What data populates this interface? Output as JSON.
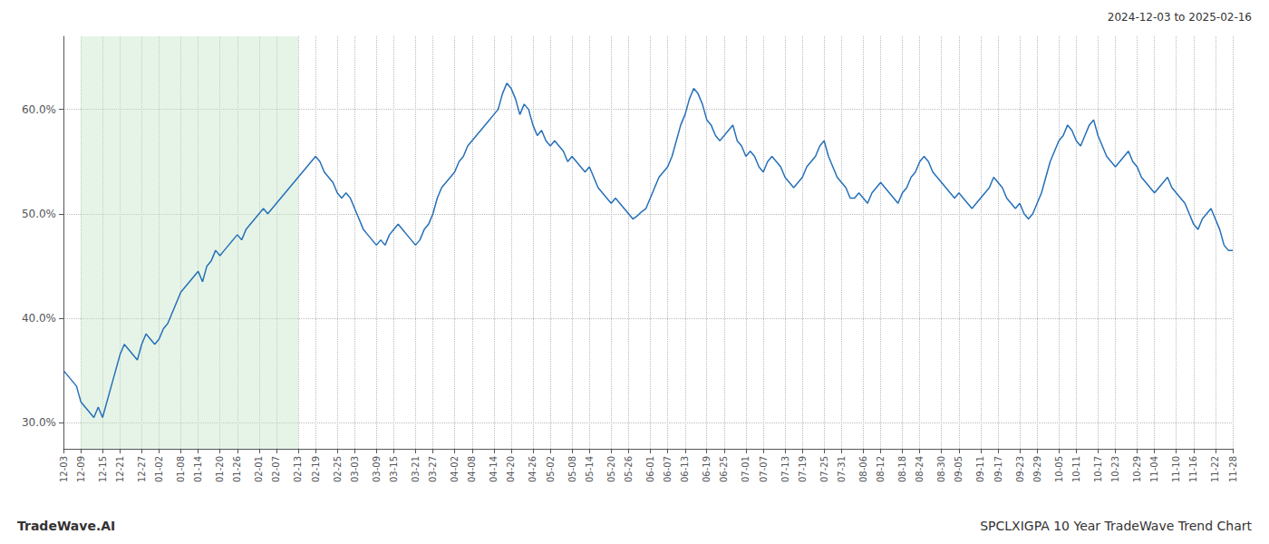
{
  "chart_data": {
    "type": "line",
    "title": "SPCLXIGPA 10 Year TradeWave Trend Chart",
    "subtitle": "2024-12-03 to 2025-02-16",
    "annotations": [
      "TradeWave.AI"
    ],
    "color": "#2570b8",
    "grid": true,
    "line_style": "solid",
    "shade": {
      "from": "12-09",
      "to": "02-13",
      "color": "#c8e6c9"
    },
    "ylim": [
      27.5,
      67.0
    ],
    "yticks": [
      {
        "value": 30.0,
        "label": "30.0%"
      },
      {
        "value": 40.0,
        "label": "40.0%"
      },
      {
        "value": 50.0,
        "label": "50.0%"
      },
      {
        "value": 60.0,
        "label": "60.0%"
      }
    ],
    "categories": [
      "12-03",
      null,
      null,
      null,
      "12-09",
      null,
      null,
      null,
      null,
      "12-15",
      null,
      null,
      null,
      "12-21",
      null,
      null,
      null,
      null,
      "12-27",
      null,
      null,
      null,
      "01-02",
      null,
      null,
      null,
      null,
      "01-08",
      null,
      null,
      null,
      "01-14",
      null,
      null,
      null,
      null,
      "01-20",
      null,
      null,
      null,
      "01-26",
      null,
      null,
      null,
      null,
      "02-01",
      null,
      null,
      null,
      "02-07",
      null,
      null,
      null,
      null,
      "02-13",
      null,
      null,
      null,
      "02-19",
      null,
      null,
      null,
      null,
      "02-25",
      null,
      null,
      null,
      "03-03",
      null,
      null,
      null,
      null,
      "03-09",
      null,
      null,
      null,
      "03-15",
      null,
      null,
      null,
      null,
      "03-21",
      null,
      null,
      null,
      "03-27",
      null,
      null,
      null,
      null,
      "04-02",
      null,
      null,
      null,
      "04-08",
      null,
      null,
      null,
      null,
      "04-14",
      null,
      null,
      null,
      "04-20",
      null,
      null,
      null,
      null,
      "04-26",
      null,
      null,
      null,
      "05-02",
      null,
      null,
      null,
      null,
      "05-08",
      null,
      null,
      null,
      "05-14",
      null,
      null,
      null,
      null,
      "05-20",
      null,
      null,
      null,
      "05-26",
      null,
      null,
      null,
      null,
      "06-01",
      null,
      null,
      null,
      "06-07",
      null,
      null,
      null,
      "06-13",
      null,
      null,
      null,
      null,
      "06-19",
      null,
      null,
      null,
      "06-25",
      null,
      null,
      null,
      null,
      "07-01",
      null,
      null,
      null,
      "07-07",
      null,
      null,
      null,
      null,
      "07-13",
      null,
      null,
      null,
      "07-19",
      null,
      null,
      null,
      null,
      "07-25",
      null,
      null,
      null,
      "07-31",
      null,
      null,
      null,
      null,
      "08-06",
      null,
      null,
      null,
      "08-12",
      null,
      null,
      null,
      null,
      "08-18",
      null,
      null,
      null,
      "08-24",
      null,
      null,
      null,
      null,
      "08-30",
      null,
      null,
      null,
      "09-05",
      null,
      null,
      null,
      null,
      "09-11",
      null,
      null,
      null,
      "09-17",
      null,
      null,
      null,
      null,
      "09-23",
      null,
      null,
      null,
      "09-29",
      null,
      null,
      null,
      null,
      "10-05",
      null,
      null,
      null,
      "10-11",
      null,
      null,
      null,
      null,
      "10-17",
      null,
      null,
      null,
      "10-23",
      null,
      null,
      null,
      null,
      "10-29",
      null,
      null,
      null,
      "11-04",
      null,
      null,
      null,
      null,
      "11-10",
      null,
      null,
      null,
      "11-16",
      null,
      null,
      null,
      null,
      "11-22",
      null,
      null,
      null,
      "11-28"
    ],
    "values": [
      35.0,
      34.5,
      34.0,
      33.5,
      32.0,
      31.5,
      31.0,
      30.5,
      31.5,
      30.5,
      32.0,
      33.5,
      35.0,
      36.5,
      37.5,
      37.0,
      36.5,
      36.0,
      37.5,
      38.5,
      38.0,
      37.5,
      38.0,
      39.0,
      39.5,
      40.5,
      41.5,
      42.5,
      43.0,
      43.5,
      44.0,
      44.5,
      43.5,
      45.0,
      45.5,
      46.5,
      46.0,
      46.5,
      47.0,
      47.5,
      48.0,
      47.5,
      48.5,
      49.0,
      49.5,
      50.0,
      50.5,
      50.0,
      50.5,
      51.0,
      51.5,
      52.0,
      52.5,
      53.0,
      53.5,
      54.0,
      54.5,
      55.0,
      55.5,
      55.0,
      54.0,
      53.5,
      53.0,
      52.0,
      51.5,
      52.0,
      51.5,
      50.5,
      49.5,
      48.5,
      48.0,
      47.5,
      47.0,
      47.5,
      47.0,
      48.0,
      48.5,
      49.0,
      48.5,
      48.0,
      47.5,
      47.0,
      47.5,
      48.5,
      49.0,
      50.0,
      51.5,
      52.5,
      53.0,
      53.5,
      54.0,
      55.0,
      55.5,
      56.5,
      57.0,
      57.5,
      58.0,
      58.5,
      59.0,
      59.5,
      60.0,
      61.5,
      62.5,
      62.0,
      61.0,
      59.5,
      60.5,
      60.0,
      58.5,
      57.5,
      58.0,
      57.0,
      56.5,
      57.0,
      56.5,
      56.0,
      55.0,
      55.5,
      55.0,
      54.5,
      54.0,
      54.5,
      53.5,
      52.5,
      52.0,
      51.5,
      51.0,
      51.5,
      51.0,
      50.5,
      50.0,
      49.5,
      49.8,
      50.2,
      50.5,
      51.5,
      52.5,
      53.5,
      54.0,
      54.5,
      55.5,
      57.0,
      58.5,
      59.5,
      61.0,
      62.0,
      61.5,
      60.5,
      59.0,
      58.5,
      57.5,
      57.0,
      57.5,
      58.0,
      58.5,
      57.0,
      56.5,
      55.5,
      56.0,
      55.5,
      54.5,
      54.0,
      55.0,
      55.5,
      55.0,
      54.5,
      53.5,
      53.0,
      52.5,
      53.0,
      53.5,
      54.5,
      55.0,
      55.5,
      56.5,
      57.0,
      55.5,
      54.5,
      53.5,
      53.0,
      52.5,
      51.5,
      51.5,
      52.0,
      51.5,
      51.0,
      52.0,
      52.5,
      53.0,
      52.5,
      52.0,
      51.5,
      51.0,
      52.0,
      52.5,
      53.5,
      54.0,
      55.0,
      55.5,
      55.0,
      54.0,
      53.5,
      53.0,
      52.5,
      52.0,
      51.5,
      52.0,
      51.5,
      51.0,
      50.5,
      51.0,
      51.5,
      52.0,
      52.5,
      53.5,
      53.0,
      52.5,
      51.5,
      51.0,
      50.5,
      51.0,
      50.0,
      49.5,
      50.0,
      51.0,
      52.0,
      53.5,
      55.0,
      56.0,
      57.0,
      57.5,
      58.5,
      58.0,
      57.0,
      56.5,
      57.5,
      58.5,
      59.0,
      57.5,
      56.5,
      55.5,
      55.0,
      54.5,
      55.0,
      55.5,
      56.0,
      55.0,
      54.5,
      53.5,
      53.0,
      52.5,
      52.0,
      52.5,
      53.0,
      53.5,
      52.5,
      52.0,
      51.5,
      51.0,
      50.0,
      49.0,
      48.5,
      49.5,
      50.0,
      50.5,
      49.5,
      48.5,
      47.0,
      46.5,
      46.5
    ]
  }
}
